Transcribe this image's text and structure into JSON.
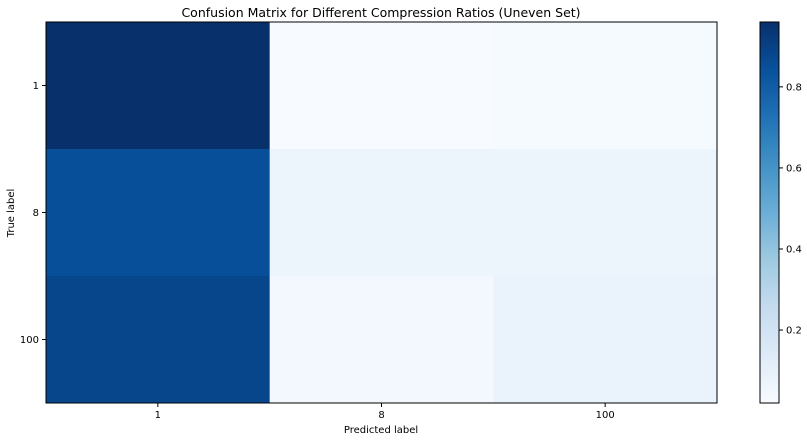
{
  "chart_data": {
    "type": "heatmap",
    "title": "Confusion Matrix for Different Compression Ratios (Uneven Set)",
    "xlabel": "Predicted label",
    "ylabel": "True label",
    "x_categories": [
      "1",
      "8",
      "100"
    ],
    "y_categories": [
      "1",
      "8",
      "100"
    ],
    "values": [
      [
        0.96,
        0.02,
        0.03
      ],
      [
        0.85,
        0.07,
        0.07
      ],
      [
        0.88,
        0.04,
        0.08
      ]
    ],
    "colormap": "Blues",
    "color_range": [
      0.02,
      0.96
    ],
    "colorbar": {
      "ticks": [
        0.2,
        0.4,
        0.6,
        0.8
      ],
      "tick_labels": [
        "0.2",
        "0.4",
        "0.6",
        "0.8"
      ]
    }
  }
}
